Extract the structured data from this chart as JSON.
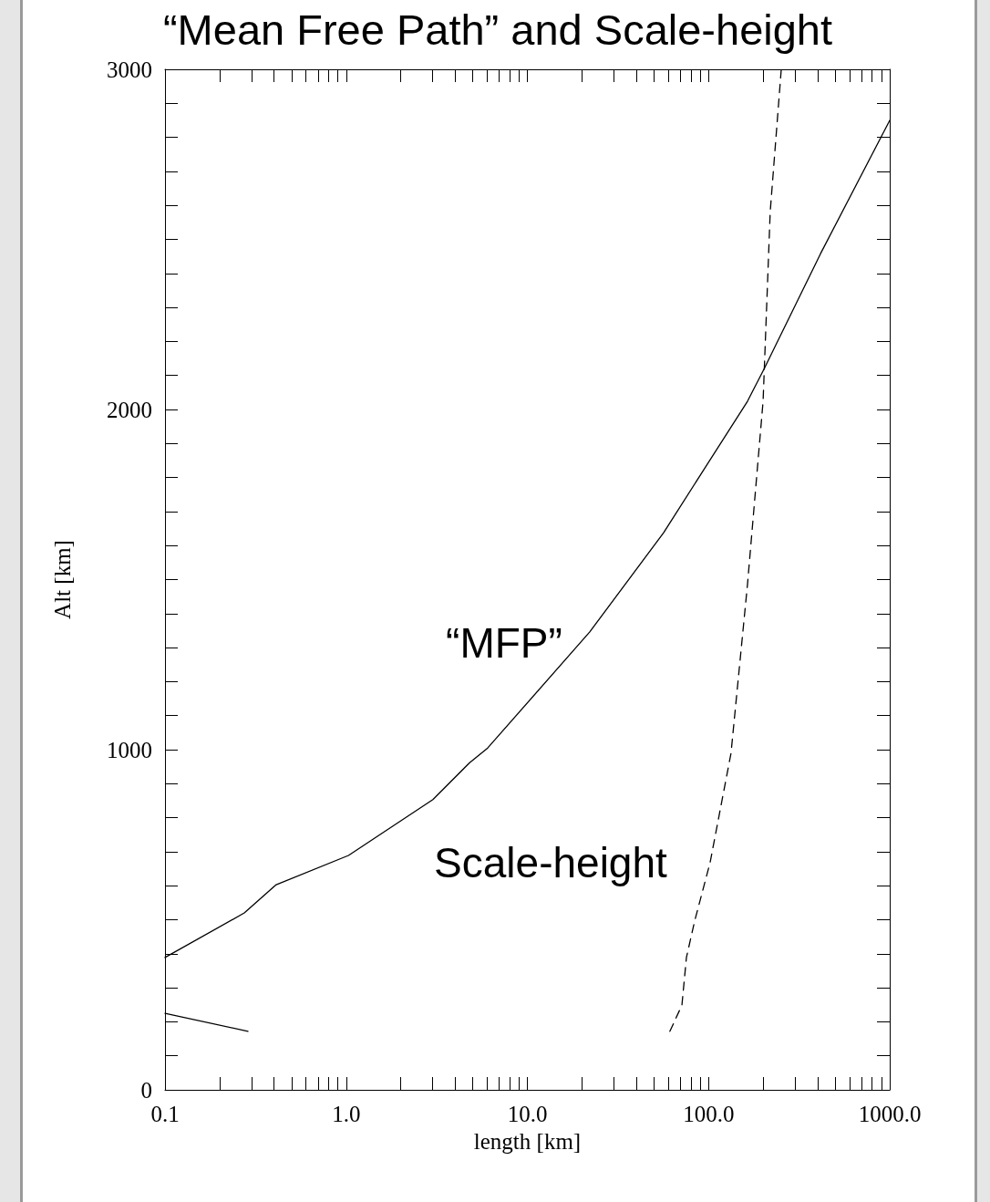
{
  "chart_data": {
    "type": "line",
    "title": "“Mean Free Path” and Scale-height",
    "xlabel": "length [km]",
    "ylabel": "Alt [km]",
    "log": "x",
    "xlim": [
      0.1,
      1000
    ],
    "xticks": [
      {
        "value": 0.1,
        "label": "0.1"
      },
      {
        "value": 1,
        "label": "1.0"
      },
      {
        "value": 10,
        "label": "10.0"
      },
      {
        "value": 100,
        "label": "100.0"
      },
      {
        "value": 1000,
        "label": "1000.0"
      },
      {
        "value": 0.2,
        "label": null
      },
      {
        "value": 0.3,
        "label": null
      },
      {
        "value": 0.4,
        "label": null
      },
      {
        "value": 0.5,
        "label": null
      },
      {
        "value": 0.6,
        "label": null
      },
      {
        "value": 0.7,
        "label": null
      },
      {
        "value": 0.8,
        "label": null
      },
      {
        "value": 0.9,
        "label": null
      },
      {
        "value": 2,
        "label": null
      },
      {
        "value": 3,
        "label": null
      },
      {
        "value": 4,
        "label": null
      },
      {
        "value": 5,
        "label": null
      },
      {
        "value": 6,
        "label": null
      },
      {
        "value": 7,
        "label": null
      },
      {
        "value": 8,
        "label": null
      },
      {
        "value": 9,
        "label": null
      },
      {
        "value": 20,
        "label": null
      },
      {
        "value": 30,
        "label": null
      },
      {
        "value": 40,
        "label": null
      },
      {
        "value": 50,
        "label": null
      },
      {
        "value": 60,
        "label": null
      },
      {
        "value": 70,
        "label": null
      },
      {
        "value": 80,
        "label": null
      },
      {
        "value": 90,
        "label": null
      },
      {
        "value": 200,
        "label": null
      },
      {
        "value": 300,
        "label": null
      },
      {
        "value": 400,
        "label": null
      },
      {
        "value": 500,
        "label": null
      },
      {
        "value": 600,
        "label": null
      },
      {
        "value": 700,
        "label": null
      },
      {
        "value": 800,
        "label": null
      },
      {
        "value": 900,
        "label": null
      }
    ],
    "ylim": [
      0,
      3000
    ],
    "yticks": [
      0,
      1000,
      2000,
      3000,
      {
        "value": 100,
        "label": null
      },
      {
        "value": 200,
        "label": null
      },
      {
        "value": 300,
        "label": null
      },
      {
        "value": 400,
        "label": null
      },
      {
        "value": 500,
        "label": null
      },
      {
        "value": 600,
        "label": null
      },
      {
        "value": 700,
        "label": null
      },
      {
        "value": 800,
        "label": null
      },
      {
        "value": 900,
        "label": null
      },
      {
        "value": 1100,
        "label": null
      },
      {
        "value": 1200,
        "label": null
      },
      {
        "value": 1300,
        "label": null
      },
      {
        "value": 1400,
        "label": null
      },
      {
        "value": 1500,
        "label": null
      },
      {
        "value": 1600,
        "label": null
      },
      {
        "value": 1700,
        "label": null
      },
      {
        "value": 1800,
        "label": null
      },
      {
        "value": 1900,
        "label": null
      },
      {
        "value": 2100,
        "label": null
      },
      {
        "value": 2200,
        "label": null
      },
      {
        "value": 2300,
        "label": null
      },
      {
        "value": 2400,
        "label": null
      },
      {
        "value": 2500,
        "label": null
      },
      {
        "value": 2600,
        "label": null
      },
      {
        "value": 2700,
        "label": null
      },
      {
        "value": 2800,
        "label": null
      },
      {
        "value": 2900,
        "label": null
      }
    ],
    "grid": false,
    "legend": false,
    "marker": "none",
    "series": [
      {
        "name": "“MFP”",
        "color": "#000000",
        "line_style": "solid",
        "x": [
          0.1,
          0.274,
          0.411,
          1.03,
          3.01,
          4.79,
          6.04,
          22.1,
          56.5,
          164,
          202,
          415,
          1000
        ],
        "values": [
          389,
          520,
          603,
          689,
          853,
          961,
          1005,
          1346,
          1638,
          2024,
          2118,
          2458,
          2850
        ]
      },
      {
        "color": "#000000",
        "line_style": "solid",
        "x": [
          0.1,
          0.287
        ],
        "values": [
          225,
          172
        ]
      },
      {
        "name": "Scale-height",
        "color": "#000000",
        "line_style": "dashed",
        "x": [
          61.2,
          71.3,
          75.5,
          83.8,
          102,
          133,
          164,
          200,
          219,
          252
        ],
        "values": [
          172,
          249,
          389,
          496,
          668,
          989,
          1485,
          2024,
          2582,
          3000
        ]
      }
    ]
  }
}
